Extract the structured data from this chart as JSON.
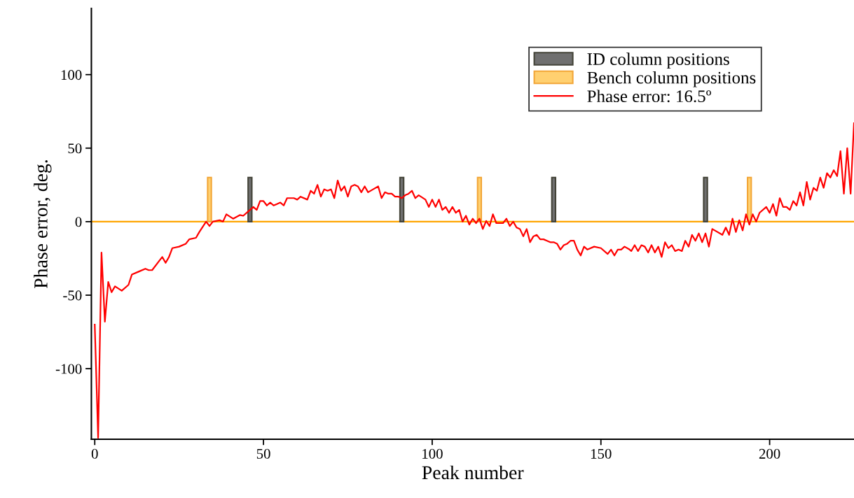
{
  "chart_data": {
    "type": "line",
    "xlabel": "Peak number",
    "ylabel": "Phase error, deg.",
    "xlim": [
      -1,
      225
    ],
    "ylim": [
      -148,
      145
    ],
    "xticks": [
      0,
      50,
      100,
      150,
      200
    ],
    "yticks": [
      -100,
      -50,
      0,
      50,
      100
    ],
    "grid": false,
    "legend": "top right",
    "marker": "none",
    "line_style": "solid",
    "ref_lines": [
      {
        "axis": "y",
        "value": 0,
        "color": "#ffa500"
      }
    ],
    "series": [
      {
        "name": "ID column positions",
        "type": "bar",
        "color": "#707070",
        "x": [
          46,
          91,
          136,
          181
        ],
        "values": [
          30,
          30,
          30,
          30
        ]
      },
      {
        "name": "Bench column positions",
        "type": "bar",
        "color": "#ffd070",
        "x": [
          34,
          114,
          194
        ],
        "values": [
          30,
          30,
          30
        ]
      },
      {
        "name": "Phase error: 16.5º",
        "color": "#ff0000",
        "x": [
          0,
          1,
          2,
          3,
          4,
          5,
          6,
          8,
          10,
          11,
          13,
          15,
          16,
          17,
          19,
          20,
          21,
          22,
          23,
          25,
          27,
          28,
          30,
          31,
          33,
          34,
          35,
          37,
          38,
          39,
          41,
          43,
          44,
          46,
          47,
          48,
          49,
          50,
          51,
          52,
          53,
          54,
          55,
          56,
          57,
          59,
          60,
          61,
          63,
          64,
          65,
          66,
          67,
          68,
          69,
          70,
          71,
          72,
          73,
          74,
          75,
          76,
          77,
          78,
          79,
          80,
          81,
          82.5,
          84,
          85,
          86,
          87,
          88,
          89,
          90,
          91,
          92,
          93,
          94,
          95,
          96,
          98,
          99,
          100,
          101,
          102,
          103,
          104,
          105,
          106,
          107,
          108,
          109,
          110,
          111,
          112,
          113,
          114,
          115,
          116,
          117,
          118,
          119,
          121,
          122,
          123,
          124,
          125,
          126,
          127,
          128,
          129,
          130,
          131,
          132,
          133,
          134,
          135,
          136,
          137,
          138,
          139,
          140,
          141,
          142,
          143,
          144,
          145,
          146,
          148,
          150,
          152,
          153,
          154,
          155,
          156,
          157,
          158.5,
          159,
          160,
          161,
          162,
          163,
          164,
          165,
          166,
          167,
          168,
          169,
          170,
          171,
          172,
          173,
          174,
          175,
          176,
          177,
          178,
          179,
          180,
          181,
          182,
          183,
          186,
          187,
          188,
          189,
          190,
          191,
          192,
          193,
          194,
          195,
          196,
          197,
          199,
          200,
          201,
          202,
          203,
          204,
          205,
          206,
          207,
          208,
          209,
          210,
          211,
          212,
          213,
          214,
          215,
          216,
          217,
          218,
          219,
          220,
          221,
          222,
          223,
          224,
          225
        ],
        "values": [
          -70,
          -147,
          -21,
          -68,
          -41,
          -48,
          -44,
          -47,
          -43,
          -36,
          -34,
          -32,
          -33,
          -33,
          -27,
          -24,
          -28,
          -24,
          -18,
          -17,
          -15,
          -12,
          -11,
          -7,
          0,
          -3,
          0,
          1,
          0,
          5,
          2,
          4.5,
          4,
          8,
          10,
          8,
          14,
          14,
          11,
          13,
          11,
          12,
          13,
          11,
          16,
          16,
          15,
          17,
          15,
          21,
          19,
          25,
          17,
          22,
          21,
          22,
          16,
          28,
          21,
          24,
          17,
          24,
          25,
          24,
          20,
          24,
          20,
          22,
          24,
          16,
          20,
          19,
          19,
          17,
          17,
          16,
          18,
          19,
          21,
          16,
          18,
          15,
          10,
          15,
          10,
          15,
          8,
          10,
          6,
          10,
          6,
          8,
          0,
          4,
          -2,
          2,
          -1,
          2,
          -5,
          0.5,
          -3,
          5,
          -1,
          -1,
          2,
          -3,
          0,
          -4,
          -5,
          -10,
          -5,
          -14,
          -10,
          -9,
          -12,
          -12,
          -13,
          -14,
          -14,
          -15,
          -19,
          -16,
          -15,
          -13,
          -13,
          -19,
          -23,
          -17,
          -19,
          -17,
          -18,
          -22,
          -19,
          -23,
          -19,
          -19,
          -17,
          -19,
          -20,
          -16,
          -20,
          -16,
          -17,
          -21,
          -16,
          -21,
          -17,
          -24,
          -14,
          -18,
          -16,
          -20,
          -19,
          -20,
          -13,
          -17,
          -9,
          -13,
          -8,
          -14,
          -8,
          -17,
          -5,
          -9,
          -4,
          -9,
          2,
          -7,
          1,
          -6,
          5,
          -2,
          5,
          0,
          6,
          10,
          6,
          12,
          4,
          16,
          10,
          10,
          8,
          14,
          11,
          20,
          11,
          27,
          15,
          23,
          21,
          30,
          23,
          33,
          30,
          35,
          31,
          48,
          19,
          50,
          19,
          67
        ]
      }
    ]
  }
}
